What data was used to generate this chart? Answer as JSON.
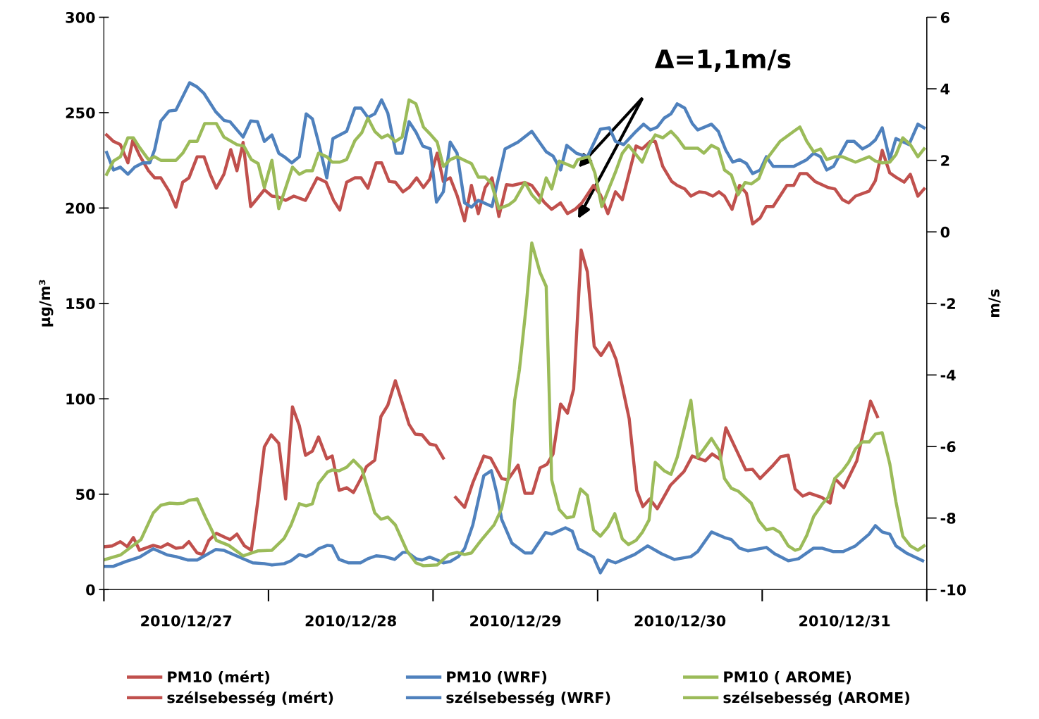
{
  "chart_data": {
    "type": "line",
    "ylabel": "μg/m³",
    "y2label": "m/s",
    "xlim": [
      "2010-12-26T12:00",
      "2010-12-31T12:00"
    ],
    "xticks": [
      {
        "value": "2010-12-27",
        "label": "2010/12/27"
      },
      {
        "value": "2010-12-28",
        "label": "2010/12/28"
      },
      {
        "value": "2010-12-29",
        "label": "2010/12/29"
      },
      {
        "value": "2010-12-30",
        "label": "2010/12/30"
      },
      {
        "value": "2010-12-31",
        "label": "2010/12/31"
      }
    ],
    "ylim": [
      0,
      300
    ],
    "yticks": [
      0,
      50,
      100,
      150,
      200,
      250,
      300
    ],
    "y2lim": [
      -10,
      6
    ],
    "y2ticks": [
      -10,
      -8,
      -6,
      -4,
      -2,
      0,
      2,
      4,
      6
    ],
    "grid": false,
    "legend": "bottom",
    "marker": "none",
    "line_style": "solid",
    "annotations": [
      "Δ=1,1m/s"
    ],
    "series": [
      {
        "name": "PM10 (mért)",
        "color": "#c0504d",
        "x": [
          "2010-12-26T12:12",
          "2010-12-26T13:12",
          "2010-12-26T14:24",
          "2010-12-26T15:24",
          "2010-12-26T16:18",
          "2010-12-26T17:12",
          "2010-12-26T19:12",
          "2010-12-26T20:18",
          "2010-12-26T21:18",
          "2010-12-26T22:30",
          "2010-12-26T23:30",
          "2010-12-27T00:24",
          "2010-12-27T01:36",
          "2010-12-27T02:24",
          "2010-12-27T03:18",
          "2010-12-27T04:24",
          "2010-12-27T05:42",
          "2010-12-27T06:24",
          "2010-12-27T07:24",
          "2010-12-27T08:30",
          "2010-12-27T09:30",
          "2010-12-27T10:30",
          "2010-12-27T11:24",
          "2010-12-27T12:24",
          "2010-12-27T13:30",
          "2010-12-27T14:30",
          "2010-12-27T15:30",
          "2010-12-27T16:30",
          "2010-12-27T17:24",
          "2010-12-27T18:24",
          "2010-12-27T19:18",
          "2010-12-27T20:30",
          "2010-12-27T21:18",
          "2010-12-27T22:18",
          "2010-12-27T23:24",
          "2010-12-28T00:24",
          "2010-12-28T01:36",
          "2010-12-28T02:18",
          "2010-12-28T03:30",
          "2010-12-28T04:24",
          "2010-12-28T05:24",
          "2010-12-28T06:30",
          "2010-12-28T07:24",
          "2010-12-28T08:30",
          "2010-12-28T09:24",
          "2010-12-28T10:24",
          "2010-12-28T11:30",
          "2010-12-28T12:24",
          "2010-12-28T13:30",
          "2010-12-28T14:30",
          "2010-12-28T15:18",
          "2010-12-28T16:36",
          "2010-12-28T17:48",
          "2010-12-28T19:24",
          "2010-12-28T20:24",
          "2010-12-28T22:00",
          "2010-12-28T22:54",
          "2010-12-29T00:24",
          "2010-12-29T01:24",
          "2010-12-29T02:30",
          "2010-12-29T03:36",
          "2010-12-29T04:36",
          "2010-12-29T05:30",
          "2010-12-29T06:36",
          "2010-12-29T07:36",
          "2010-12-29T08:30",
          "2010-12-29T09:36",
          "2010-12-29T10:30",
          "2010-12-29T11:30",
          "2010-12-29T12:30",
          "2010-12-29T13:42",
          "2010-12-29T14:42",
          "2010-12-29T15:36",
          "2010-12-29T16:36",
          "2010-12-29T17:42",
          "2010-12-29T18:36",
          "2010-12-29T19:36",
          "2010-12-29T20:42",
          "2010-12-29T22:36",
          "2010-12-30T00:36",
          "2010-12-30T01:48",
          "2010-12-30T03:42",
          "2010-12-30T04:42",
          "2010-12-30T05:54",
          "2010-12-30T06:42",
          "2010-12-30T08:30",
          "2010-12-30T09:36",
          "2010-12-30T10:36",
          "2010-12-30T11:42",
          "2010-12-30T13:36",
          "2010-12-30T14:42",
          "2010-12-30T15:48",
          "2010-12-30T16:48",
          "2010-12-30T17:54",
          "2010-12-30T18:54",
          "2010-12-30T20:42",
          "2010-12-30T21:54",
          "2010-12-30T22:36",
          "2010-12-30T23:54",
          "2010-12-31T01:48",
          "2010-12-31T03:48",
          "2010-12-31T04:48"
        ],
        "values": [
          22.5,
          22.9,
          25.1,
          22.5,
          27.3,
          20.6,
          23.2,
          22.1,
          24.0,
          21.7,
          22.1,
          25.1,
          19.2,
          18.4,
          25.8,
          29.5,
          27.3,
          26.2,
          29.1,
          22.9,
          20.6,
          47.9,
          74.8,
          81.1,
          76.7,
          47.5,
          95.8,
          85.9,
          70.4,
          72.6,
          80.0,
          68.6,
          70.0,
          52.0,
          53.4,
          50.9,
          59.0,
          64.5,
          67.8,
          90.7,
          96.6,
          109.5,
          99.2,
          86.6,
          81.5,
          81.1,
          76.3,
          75.6,
          68.9,
          null,
          48.3,
          43.1,
          56.0,
          70.0,
          68.9,
          58.2,
          57.5,
          65.2,
          50.5,
          50.5,
          63.8,
          65.6,
          71.1,
          97.3,
          92.5,
          105.1,
          178.0,
          166.6,
          127.5,
          122.7,
          129.4,
          120.5,
          106.5,
          89.6,
          52.0,
          43.5,
          47.5,
          42.4,
          54.6,
          61.9,
          70.0,
          67.5,
          71.1,
          68.2,
          84.8,
          71.1,
          62.7,
          63.0,
          58.2,
          65.2,
          69.7,
          70.4,
          52.7,
          49.0,
          50.5,
          48.3,
          45.3,
          58.2,
          53.4,
          67.5,
          98.8,
          90.7
        ]
      },
      {
        "name": "PM10 (WRF)",
        "color": "#4f81bd",
        "x": [
          "2010-12-26T12:12",
          "2010-12-26T13:24",
          "2010-12-26T15:12",
          "2010-12-26T17:12",
          "2010-12-26T19:12",
          "2010-12-26T21:18",
          "2010-12-26T22:30",
          "2010-12-27T00:12",
          "2010-12-27T01:36",
          "2010-12-27T04:18",
          "2010-12-27T05:30",
          "2010-12-27T06:36",
          "2010-12-27T09:42",
          "2010-12-27T11:24",
          "2010-12-27T12:30",
          "2010-12-27T14:18",
          "2010-12-27T15:18",
          "2010-12-27T16:30",
          "2010-12-27T17:30",
          "2010-12-27T18:24",
          "2010-12-27T19:18",
          "2010-12-27T20:36",
          "2010-12-27T21:18",
          "2010-12-27T22:18",
          "2010-12-27T23:42",
          "2010-12-28T01:24",
          "2010-12-28T02:30",
          "2010-12-28T03:42",
          "2010-12-28T04:54",
          "2010-12-28T06:24",
          "2010-12-28T07:36",
          "2010-12-28T08:18",
          "2010-12-28T09:30",
          "2010-12-28T10:24",
          "2010-12-28T11:30",
          "2010-12-28T12:36",
          "2010-12-28T13:30",
          "2010-12-28T14:30",
          "2010-12-28T15:42",
          "2010-12-28T16:36",
          "2010-12-28T17:48",
          "2010-12-28T19:24",
          "2010-12-28T20:30",
          "2010-12-28T21:18",
          "2010-12-28T22:00",
          "2010-12-28T23:30",
          "2010-12-29T01:24",
          "2010-12-29T02:24",
          "2010-12-29T04:24",
          "2010-12-29T05:18",
          "2010-12-29T07:18",
          "2010-12-29T08:18",
          "2010-12-29T09:12",
          "2010-12-29T11:24",
          "2010-12-29T12:24",
          "2010-12-29T13:30",
          "2010-12-29T14:36",
          "2010-12-29T17:24",
          "2010-12-29T19:18",
          "2010-12-29T21:18",
          "2010-12-29T23:12",
          "2010-12-30T01:36",
          "2010-12-30T02:36",
          "2010-12-30T04:36",
          "2010-12-30T06:30",
          "2010-12-30T07:30",
          "2010-12-30T08:42",
          "2010-12-30T09:54",
          "2010-12-30T12:36",
          "2010-12-30T13:48",
          "2010-12-30T15:48",
          "2010-12-30T17:18",
          "2010-12-30T19:30",
          "2010-12-30T20:42",
          "2010-12-30T22:24",
          "2010-12-30T23:48",
          "2010-12-31T01:36",
          "2010-12-31T03:36",
          "2010-12-31T04:30",
          "2010-12-31T05:30",
          "2010-12-31T06:36",
          "2010-12-31T07:30",
          "2010-12-31T09:00",
          "2010-12-31T11:24"
        ],
        "values": [
          12.2,
          12.2,
          14.7,
          17.0,
          21.4,
          18.1,
          17.3,
          15.5,
          15.5,
          21.0,
          20.6,
          18.8,
          14.0,
          13.6,
          12.9,
          13.6,
          15.1,
          18.4,
          17.3,
          18.8,
          21.4,
          23.2,
          22.9,
          15.8,
          14.0,
          14.0,
          16.2,
          17.7,
          17.3,
          15.8,
          19.5,
          19.5,
          16.2,
          15.5,
          17.0,
          15.5,
          14.0,
          14.7,
          17.3,
          21.4,
          33.9,
          59.7,
          62.3,
          50.5,
          36.9,
          24.3,
          19.2,
          19.2,
          29.9,
          29.1,
          32.4,
          30.6,
          21.4,
          17.0,
          8.8,
          15.5,
          14.0,
          18.4,
          22.9,
          18.8,
          15.8,
          17.3,
          19.9,
          30.2,
          27.3,
          26.2,
          21.7,
          20.3,
          22.1,
          18.8,
          15.1,
          16.2,
          21.7,
          21.7,
          19.9,
          19.9,
          22.9,
          29.1,
          33.5,
          30.2,
          29.1,
          22.9,
          19.2,
          15.1
        ]
      },
      {
        "name": "PM10 ( AROME)",
        "color": "#9bbb59",
        "x": [
          "2010-12-26T12:12",
          "2010-12-26T14:24",
          "2010-12-26T17:24",
          "2010-12-26T19:12",
          "2010-12-26T20:18",
          "2010-12-26T21:36",
          "2010-12-26T22:42",
          "2010-12-26T23:36",
          "2010-12-27T00:24",
          "2010-12-27T01:36",
          "2010-12-27T02:48",
          "2010-12-27T03:54",
          "2010-12-27T04:24",
          "2010-12-27T06:12",
          "2010-12-27T08:18",
          "2010-12-27T10:30",
          "2010-12-27T12:30",
          "2010-12-27T14:18",
          "2010-12-27T15:18",
          "2010-12-27T16:30",
          "2010-12-27T17:30",
          "2010-12-27T18:24",
          "2010-12-27T19:18",
          "2010-12-27T20:36",
          "2010-12-27T21:18",
          "2010-12-27T22:18",
          "2010-12-27T23:24",
          "2010-12-28T00:24",
          "2010-12-28T01:36",
          "2010-12-28T03:30",
          "2010-12-28T04:24",
          "2010-12-28T05:24",
          "2010-12-28T06:30",
          "2010-12-28T08:12",
          "2010-12-28T09:30",
          "2010-12-28T10:36",
          "2010-12-28T12:36",
          "2010-12-28T14:18",
          "2010-12-28T15:30",
          "2010-12-28T16:36",
          "2010-12-28T17:36",
          "2010-12-28T19:00",
          "2010-12-28T20:54",
          "2010-12-28T22:00",
          "2010-12-28T23:00",
          "2010-12-28T23:54",
          "2010-12-29T00:36",
          "2010-12-29T01:36",
          "2010-12-29T02:24",
          "2010-12-29T03:36",
          "2010-12-29T04:30",
          "2010-12-29T05:18",
          "2010-12-29T06:24",
          "2010-12-29T07:30",
          "2010-12-29T08:30",
          "2010-12-29T09:30",
          "2010-12-29T10:30",
          "2010-12-29T11:24",
          "2010-12-29T12:24",
          "2010-12-29T13:30",
          "2010-12-29T14:30",
          "2010-12-29T15:36",
          "2010-12-29T16:30",
          "2010-12-29T17:36",
          "2010-12-29T18:30",
          "2010-12-29T19:30",
          "2010-12-29T20:24",
          "2010-12-29T21:42",
          "2010-12-29T22:42",
          "2010-12-29T23:36",
          "2010-12-30T00:42",
          "2010-12-30T01:36",
          "2010-12-30T02:36",
          "2010-12-30T03:30",
          "2010-12-30T04:36",
          "2010-12-30T05:42",
          "2010-12-30T06:30",
          "2010-12-30T07:30",
          "2010-12-30T08:30",
          "2010-12-30T10:24",
          "2010-12-30T11:30",
          "2010-12-30T12:36",
          "2010-12-30T13:36",
          "2010-12-30T14:36",
          "2010-12-30T15:48",
          "2010-12-30T16:48",
          "2010-12-30T17:30",
          "2010-12-30T18:30",
          "2010-12-30T19:30",
          "2010-12-30T20:42",
          "2010-12-30T21:36",
          "2010-12-30T22:36",
          "2010-12-30T23:42",
          "2010-12-31T00:36",
          "2010-12-31T01:36",
          "2010-12-31T02:36",
          "2010-12-31T03:36",
          "2010-12-31T04:30",
          "2010-12-31T05:30",
          "2010-12-31T06:36",
          "2010-12-31T07:30",
          "2010-12-31T08:30",
          "2010-12-31T09:36",
          "2010-12-31T10:42",
          "2010-12-31T11:36"
        ],
        "values": [
          15.8,
          18.1,
          26.2,
          40.2,
          44.2,
          45.3,
          45.0,
          45.3,
          46.8,
          47.5,
          38.0,
          29.9,
          25.8,
          23.2,
          17.7,
          20.3,
          20.6,
          26.9,
          33.9,
          45.0,
          43.9,
          45.0,
          55.7,
          61.6,
          62.7,
          62.3,
          64.1,
          67.8,
          63.4,
          40.2,
          36.9,
          38.0,
          33.9,
          20.3,
          14.0,
          12.5,
          12.9,
          18.4,
          19.5,
          18.4,
          19.2,
          25.8,
          33.9,
          42.4,
          59.0,
          99.2,
          115.4,
          149.3,
          181.7,
          166.2,
          158.9,
          57.5,
          42.0,
          37.6,
          38.3,
          52.7,
          49.4,
          31.3,
          28.0,
          32.8,
          39.8,
          26.5,
          23.6,
          25.8,
          29.9,
          36.5,
          66.7,
          62.3,
          60.4,
          69.3,
          85.5,
          99.2,
          69.3,
          73.7,
          79.2,
          73.0,
          58.2,
          53.1,
          51.6,
          45.3,
          36.1,
          31.3,
          32.1,
          29.9,
          22.9,
          20.6,
          21.4,
          28.4,
          38.3,
          44.6,
          48.3,
          58.2,
          62.3,
          66.7,
          73.7,
          77.4,
          77.4,
          81.5,
          82.2,
          66.0,
          46.1,
          28.0,
          22.9,
          20.6,
          22.9
        ]
      },
      {
        "name": "szélsebesség (mért)",
        "color": "#c0504d",
        "axis": "y2",
        "x": [
          "2010-12-26T12:24",
          "2010-12-26T13:24",
          "2010-12-26T14:24",
          "2010-12-26T15:30",
          "2010-12-26T16:12",
          "2010-12-26T17:12",
          "2010-12-26T18:30",
          "2010-12-26T19:24",
          "2010-12-26T20:18",
          "2010-12-26T21:30",
          "2010-12-26T22:30",
          "2010-12-26T23:30",
          "2010-12-27T00:24",
          "2010-12-27T01:36",
          "2010-12-27T02:36",
          "2010-12-27T03:30",
          "2010-12-27T04:24",
          "2010-12-27T05:30",
          "2010-12-27T06:30",
          "2010-12-27T07:24",
          "2010-12-27T08:18",
          "2010-12-27T09:24",
          "2010-12-27T10:24",
          "2010-12-27T11:24",
          "2010-12-27T12:30",
          "2010-12-27T13:24",
          "2010-12-27T14:30",
          "2010-12-27T15:42",
          "2010-12-27T17:24",
          "2010-12-27T19:06",
          "2010-12-27T20:24",
          "2010-12-27T21:30",
          "2010-12-27T22:24",
          "2010-12-27T23:24",
          "2010-12-28T00:36",
          "2010-12-28T01:30",
          "2010-12-28T02:30",
          "2010-12-28T03:42",
          "2010-12-28T04:30",
          "2010-12-28T05:36",
          "2010-12-28T06:30",
          "2010-12-28T07:36",
          "2010-12-28T08:30",
          "2010-12-28T09:36",
          "2010-12-28T10:36",
          "2010-12-28T11:30",
          "2010-12-28T12:36",
          "2010-12-28T13:30",
          "2010-12-28T14:30",
          "2010-12-28T15:30",
          "2010-12-28T16:36",
          "2010-12-28T17:36",
          "2010-12-28T18:36",
          "2010-12-28T19:36",
          "2010-12-28T20:36",
          "2010-12-28T21:36",
          "2010-12-28T22:42",
          "2010-12-28T23:36",
          "2010-12-29T01:24",
          "2010-12-29T02:24",
          "2010-12-29T04:12",
          "2010-12-29T05:18",
          "2010-12-29T06:36",
          "2010-12-29T07:36",
          "2010-12-29T08:42",
          "2010-12-29T09:42",
          "2010-12-29T11:24",
          "2010-12-29T12:24",
          "2010-12-29T13:30",
          "2010-12-29T14:36",
          "2010-12-29T15:36",
          "2010-12-29T17:36",
          "2010-12-29T18:30",
          "2010-12-29T19:42",
          "2010-12-29T20:24",
          "2010-12-29T21:30",
          "2010-12-29T22:48",
          "2010-12-29T23:36",
          "2010-12-30T00:42",
          "2010-12-30T01:36",
          "2010-12-30T02:48",
          "2010-12-30T03:42",
          "2010-12-30T04:48",
          "2010-12-30T05:42",
          "2010-12-30T06:30",
          "2010-12-30T07:36",
          "2010-12-30T08:42",
          "2010-12-30T09:42",
          "2010-12-30T10:36",
          "2010-12-30T11:42",
          "2010-12-30T12:36",
          "2010-12-30T13:36",
          "2010-12-30T15:36",
          "2010-12-30T16:36",
          "2010-12-30T17:30",
          "2010-12-30T18:30",
          "2010-12-30T19:42",
          "2010-12-30T21:36",
          "2010-12-30T22:36",
          "2010-12-30T23:42",
          "2010-12-31T00:36",
          "2010-12-31T01:36",
          "2010-12-31T03:36",
          "2010-12-31T04:30",
          "2010-12-31T05:30",
          "2010-12-31T06:36",
          "2010-12-31T07:30",
          "2010-12-31T08:42",
          "2010-12-31T09:36",
          "2010-12-31T10:42",
          "2010-12-31T11:36"
        ],
        "values": [
          2.71,
          2.53,
          2.44,
          1.93,
          2.55,
          2.14,
          1.71,
          1.51,
          1.51,
          1.14,
          0.69,
          1.39,
          1.51,
          2.1,
          2.1,
          1.61,
          1.22,
          1.61,
          2.3,
          1.71,
          2.5,
          0.71,
          0.94,
          1.18,
          1.0,
          0.98,
          0.88,
          1.0,
          0.88,
          1.51,
          1.39,
          0.88,
          0.61,
          1.39,
          1.51,
          1.51,
          1.22,
          1.93,
          1.93,
          1.41,
          1.39,
          1.12,
          1.24,
          1.51,
          1.24,
          1.47,
          2.2,
          1.41,
          1.51,
          1.02,
          0.31,
          1.3,
          0.51,
          1.24,
          1.51,
          0.43,
          1.32,
          1.3,
          1.38,
          1.3,
          0.83,
          0.63,
          0.81,
          0.51,
          0.63,
          0.81,
          1.3,
          1.04,
          0.51,
          1.12,
          0.9,
          2.4,
          2.32,
          2.53,
          2.53,
          1.83,
          1.41,
          1.3,
          1.2,
          1.0,
          1.12,
          1.1,
          1.0,
          1.12,
          1.0,
          0.63,
          1.3,
          1.08,
          0.22,
          0.39,
          0.71,
          0.71,
          1.3,
          1.3,
          1.63,
          1.63,
          1.41,
          1.24,
          1.2,
          0.9,
          0.81,
          1.0,
          1.14,
          1.43,
          2.28,
          1.65,
          1.53,
          1.39,
          1.61,
          1.0,
          1.2
        ]
      },
      {
        "name": "szélsebesség (WRF)",
        "color": "#4f81bd",
        "axis": "y2",
        "x": [
          "2010-12-26T12:24",
          "2010-12-26T13:24",
          "2010-12-26T14:24",
          "2010-12-26T15:30",
          "2010-12-26T16:30",
          "2010-12-26T17:42",
          "2010-12-26T18:42",
          "2010-12-26T19:24",
          "2010-12-26T20:18",
          "2010-12-26T21:30",
          "2010-12-26T22:30",
          "2010-12-27T00:30",
          "2010-12-27T01:36",
          "2010-12-27T02:36",
          "2010-12-27T04:18",
          "2010-12-27T05:30",
          "2010-12-27T06:24",
          "2010-12-27T08:18",
          "2010-12-27T09:24",
          "2010-12-27T10:24",
          "2010-12-27T11:24",
          "2010-12-27T12:30",
          "2010-12-27T13:30",
          "2010-12-27T14:18",
          "2010-12-27T15:24",
          "2010-12-27T16:30",
          "2010-12-27T17:30",
          "2010-12-27T18:24",
          "2010-12-27T19:18",
          "2010-12-27T20:30",
          "2010-12-27T21:24",
          "2010-12-27T23:24",
          "2010-12-28T00:36",
          "2010-12-28T01:30",
          "2010-12-28T02:30",
          "2010-12-28T03:30",
          "2010-12-28T04:30",
          "2010-12-28T05:24",
          "2010-12-28T06:36",
          "2010-12-28T07:30",
          "2010-12-28T08:30",
          "2010-12-28T09:30",
          "2010-12-28T10:30",
          "2010-12-28T11:36",
          "2010-12-28T12:30",
          "2010-12-28T13:30",
          "2010-12-28T14:30",
          "2010-12-28T15:30",
          "2010-12-28T16:36",
          "2010-12-28T17:36",
          "2010-12-28T18:36",
          "2010-12-28T20:36",
          "2010-12-28T22:30",
          "2010-12-29T00:24",
          "2010-12-29T02:24",
          "2010-12-29T04:30",
          "2010-12-29T05:30",
          "2010-12-29T06:36",
          "2010-12-29T07:30",
          "2010-12-29T08:54",
          "2010-12-29T10:30",
          "2010-12-29T12:24",
          "2010-12-29T13:42",
          "2010-12-29T14:36",
          "2010-12-29T15:48",
          "2010-12-29T17:36",
          "2010-12-29T18:42",
          "2010-12-29T19:42",
          "2010-12-29T20:42",
          "2010-12-29T21:42",
          "2010-12-29T22:42",
          "2010-12-29T23:36",
          "2010-12-30T00:42",
          "2010-12-30T01:48",
          "2010-12-30T02:36",
          "2010-12-30T04:36",
          "2010-12-30T05:36",
          "2010-12-30T06:42",
          "2010-12-30T07:42",
          "2010-12-30T08:42",
          "2010-12-30T09:42",
          "2010-12-30T10:36",
          "2010-12-30T11:42",
          "2010-12-30T12:36",
          "2010-12-30T13:36",
          "2010-12-30T16:36",
          "2010-12-30T18:30",
          "2010-12-30T19:30",
          "2010-12-30T20:30",
          "2010-12-30T21:24",
          "2010-12-30T22:24",
          "2010-12-31T00:24",
          "2010-12-31T01:24",
          "2010-12-31T02:36",
          "2010-12-31T03:36",
          "2010-12-31T04:30",
          "2010-12-31T05:30",
          "2010-12-31T06:36",
          "2010-12-31T07:30",
          "2010-12-31T09:24",
          "2010-12-31T10:42",
          "2010-12-31T11:36"
        ],
        "values": [
          2.22,
          1.73,
          1.81,
          1.61,
          1.81,
          1.93,
          1.93,
          2.3,
          3.1,
          3.38,
          3.4,
          4.17,
          4.05,
          3.87,
          3.36,
          3.12,
          3.08,
          2.65,
          3.1,
          3.08,
          2.53,
          2.71,
          2.2,
          2.1,
          1.93,
          2.1,
          3.3,
          3.16,
          2.5,
          1.51,
          2.61,
          2.81,
          3.46,
          3.46,
          3.2,
          3.3,
          3.69,
          3.32,
          2.2,
          2.2,
          3.08,
          2.79,
          2.4,
          2.32,
          0.83,
          1.12,
          2.51,
          2.2,
          0.81,
          0.69,
          0.88,
          0.71,
          2.32,
          2.51,
          2.81,
          2.24,
          2.12,
          1.73,
          2.42,
          2.2,
          2.1,
          2.87,
          2.91,
          2.53,
          2.44,
          2.81,
          3.01,
          2.85,
          2.93,
          3.18,
          3.3,
          3.58,
          3.46,
          3.03,
          2.85,
          3.01,
          2.81,
          2.28,
          1.95,
          2.02,
          1.91,
          1.63,
          1.73,
          2.1,
          1.83,
          1.83,
          2.02,
          2.2,
          2.1,
          1.73,
          1.83,
          2.53,
          2.53,
          2.32,
          2.42,
          2.57,
          2.91,
          2.02,
          2.61,
          2.44,
          3.01,
          2.91
        ]
      },
      {
        "name": "szélsebesség (AROME)",
        "color": "#9bbb59",
        "axis": "y2",
        "x": [
          "2010-12-26T12:24",
          "2010-12-26T13:24",
          "2010-12-26T14:24",
          "2010-12-26T15:30",
          "2010-12-26T16:18",
          "2010-12-26T17:12",
          "2010-12-26T18:30",
          "2010-12-26T19:24",
          "2010-12-26T20:18",
          "2010-12-26T22:30",
          "2010-12-26T23:30",
          "2010-12-27T00:30",
          "2010-12-27T01:36",
          "2010-12-27T02:42",
          "2010-12-27T04:24",
          "2010-12-27T05:30",
          "2010-12-27T07:24",
          "2010-12-27T08:24",
          "2010-12-27T09:30",
          "2010-12-27T10:30",
          "2010-12-27T11:24",
          "2010-12-27T12:30",
          "2010-12-27T13:30",
          "2010-12-27T15:30",
          "2010-12-27T16:30",
          "2010-12-27T17:30",
          "2010-12-27T18:24",
          "2010-12-27T19:18",
          "2010-12-27T20:30",
          "2010-12-27T21:18",
          "2010-12-27T22:24",
          "2010-12-27T23:24",
          "2010-12-28T00:36",
          "2010-12-28T01:36",
          "2010-12-28T02:30",
          "2010-12-28T03:30",
          "2010-12-28T04:30",
          "2010-12-28T05:24",
          "2010-12-28T06:30",
          "2010-12-28T07:30",
          "2010-12-28T08:30",
          "2010-12-28T09:30",
          "2010-12-28T10:36",
          "2010-12-28T11:36",
          "2010-12-28T12:36",
          "2010-12-28T13:30",
          "2010-12-28T14:30",
          "2010-12-28T15:30",
          "2010-12-28T16:36",
          "2010-12-28T17:36",
          "2010-12-28T18:36",
          "2010-12-28T19:36",
          "2010-12-28T20:30",
          "2010-12-28T21:36",
          "2010-12-28T23:00",
          "2010-12-28T23:54",
          "2010-12-29T01:24",
          "2010-12-29T02:24",
          "2010-12-29T03:30",
          "2010-12-29T04:30",
          "2010-12-29T05:18",
          "2010-12-29T06:24",
          "2010-12-29T08:30",
          "2010-12-29T09:06",
          "2010-12-29T10:42",
          "2010-12-29T11:36",
          "2010-12-29T12:36",
          "2010-12-29T13:42",
          "2010-12-29T14:36",
          "2010-12-29T15:36",
          "2010-12-29T16:30",
          "2010-12-29T17:36",
          "2010-12-29T18:30",
          "2010-12-29T19:30",
          "2010-12-29T20:24",
          "2010-12-29T21:30",
          "2010-12-29T22:42",
          "2010-12-29T23:36",
          "2010-12-30T00:42",
          "2010-12-30T02:36",
          "2010-12-30T03:30",
          "2010-12-30T04:36",
          "2010-12-30T05:36",
          "2010-12-30T06:30",
          "2010-12-30T07:30",
          "2010-12-30T08:30",
          "2010-12-30T09:30",
          "2010-12-30T10:24",
          "2010-12-30T11:30",
          "2010-12-30T12:36",
          "2010-12-30T14:36",
          "2010-12-30T16:36",
          "2010-12-30T17:30",
          "2010-12-30T18:30",
          "2010-12-30T19:30",
          "2010-12-30T20:30",
          "2010-12-30T21:24",
          "2010-12-30T22:36",
          "2010-12-30T23:42",
          "2010-12-31T01:36",
          "2010-12-31T03:36",
          "2010-12-31T04:30",
          "2010-12-31T05:30",
          "2010-12-31T06:36",
          "2010-12-31T07:30",
          "2010-12-31T08:30",
          "2010-12-31T09:36",
          "2010-12-31T10:42",
          "2010-12-31T11:36"
        ],
        "values": [
          1.61,
          1.98,
          2.1,
          2.63,
          2.63,
          2.36,
          2.02,
          2.1,
          2.0,
          2.0,
          2.2,
          2.53,
          2.53,
          3.03,
          3.03,
          2.65,
          2.44,
          2.4,
          2.02,
          1.91,
          1.24,
          2.0,
          0.65,
          1.81,
          1.61,
          1.71,
          1.71,
          2.2,
          2.1,
          1.95,
          1.95,
          2.02,
          2.55,
          2.77,
          3.18,
          2.81,
          2.63,
          2.71,
          2.53,
          2.65,
          3.69,
          3.58,
          2.93,
          2.73,
          2.51,
          1.83,
          2.02,
          2.1,
          2.0,
          1.91,
          1.53,
          1.53,
          1.36,
          0.65,
          0.75,
          0.88,
          1.38,
          1.04,
          0.81,
          1.51,
          1.2,
          1.98,
          1.81,
          2.02,
          2.1,
          1.65,
          0.71,
          1.24,
          1.67,
          2.2,
          2.42,
          2.16,
          1.95,
          2.42,
          2.71,
          2.63,
          2.81,
          2.63,
          2.34,
          2.34,
          2.2,
          2.42,
          2.32,
          1.73,
          1.59,
          1.04,
          1.38,
          1.34,
          1.49,
          2.02,
          2.53,
          2.81,
          2.93,
          2.53,
          2.24,
          2.32,
          2.02,
          2.1,
          2.1,
          1.95,
          2.1,
          1.98,
          1.93,
          1.95,
          2.16,
          2.63,
          2.44,
          2.1,
          2.32
        ]
      }
    ]
  }
}
